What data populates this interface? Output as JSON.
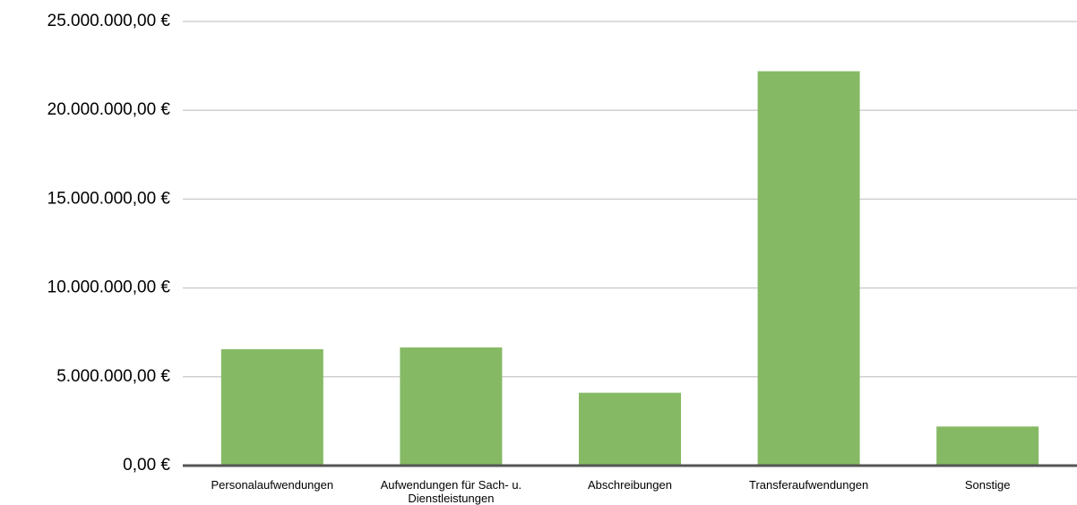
{
  "chart_data": {
    "type": "bar",
    "categories": [
      "Personalaufwendungen",
      "Aufwendungen für Sach- u. Dienstleistungen",
      "Abschreibungen",
      "Transferaufwendungen",
      "Sonstige"
    ],
    "values": [
      6550000,
      6650000,
      4100000,
      22200000,
      2200000
    ],
    "color": "#86b964",
    "ylim": [
      0,
      25000000
    ],
    "yticks": [
      {
        "value": 0,
        "label": "0,00 €"
      },
      {
        "value": 5000000,
        "label": "5.000.000,00 €"
      },
      {
        "value": 10000000,
        "label": "10.000.000,00 €"
      },
      {
        "value": 15000000,
        "label": "15.000.000,00 €"
      },
      {
        "value": 20000000,
        "label": "20.000.000,00 €"
      },
      {
        "value": 25000000,
        "label": "25.000.000,00 €"
      }
    ],
    "grid": true
  }
}
